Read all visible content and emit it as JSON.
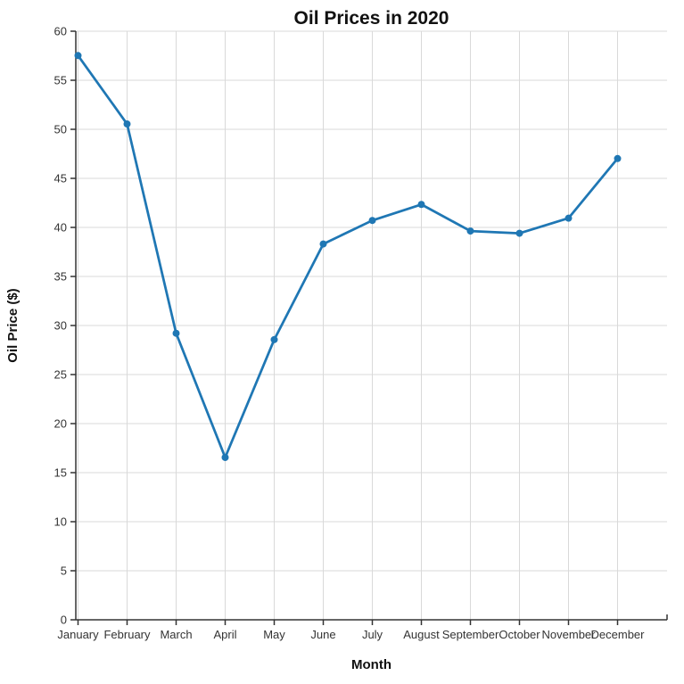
{
  "page": {
    "background": "#ffffff"
  },
  "chart_data": {
    "type": "line",
    "title": "Oil Prices in 2020",
    "xlabel": "Month",
    "ylabel": "Oil Price ($)",
    "categories": [
      "January",
      "February",
      "March",
      "April",
      "May",
      "June",
      "July",
      "August",
      "September",
      "October",
      "November",
      "December"
    ],
    "series": [
      {
        "name": "Oil Price",
        "values": [
          57.52,
          50.54,
          29.21,
          16.55,
          28.56,
          38.31,
          40.71,
          42.34,
          39.63,
          39.4,
          40.94,
          47.02
        ]
      }
    ],
    "ylim": [
      0,
      60
    ],
    "ytick_step": 5,
    "yticks": [
      0,
      5,
      10,
      15,
      20,
      25,
      30,
      35,
      40,
      45,
      50,
      55,
      60
    ],
    "grid": true,
    "legend_position": "none",
    "colors": {
      "line": "#1f77b4",
      "marker": "#1f77b4",
      "grid": "#d9d9d9",
      "axis": "#333333",
      "tick_label": "#333333",
      "text": "#111111"
    }
  }
}
